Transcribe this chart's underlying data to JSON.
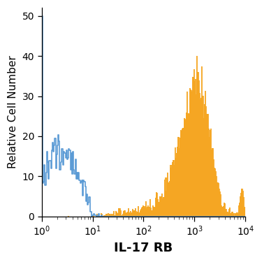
{
  "xlabel": "IL-17 RB",
  "ylabel": "Relative Cell Number",
  "xlim_log": [
    0,
    4
  ],
  "ylim": [
    0,
    52
  ],
  "yticks": [
    0,
    10,
    20,
    30,
    40,
    50
  ],
  "background_color": "#ffffff",
  "blue_color": "#5b9bd5",
  "orange_color": "#f5a623",
  "xlabel_fontsize": 13,
  "ylabel_fontsize": 11,
  "tick_fontsize": 10,
  "fig_width": 3.75,
  "fig_height": 3.75,
  "dpi": 100
}
